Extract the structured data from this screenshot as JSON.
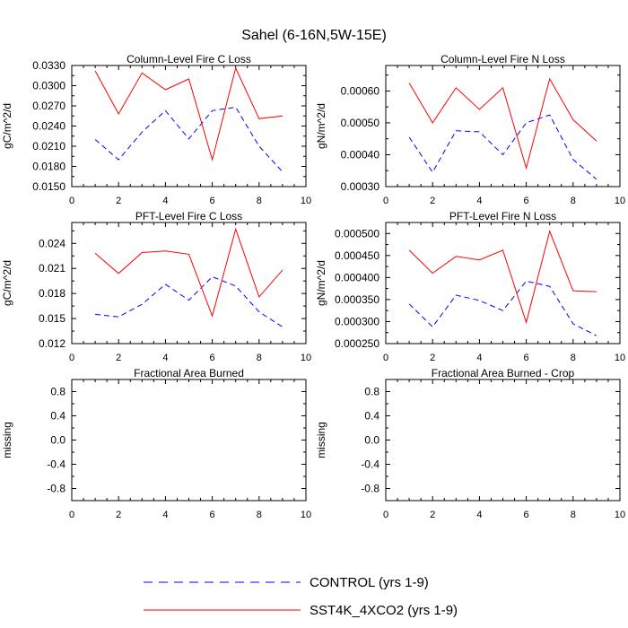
{
  "page": {
    "title": "Sahel (6-16N,5W-15E)"
  },
  "colors": {
    "control": "#0000ff",
    "sst4k": "#ff0000",
    "axis": "#000000"
  },
  "legend": {
    "control_label": "CONTROL (yrs 1-9)",
    "sst4k_label": "SST4K_4XCO2 (yrs 1-9)"
  },
  "chart_data": [
    {
      "type": "line",
      "title": "Column-Level Fire C Loss",
      "ylabel": "gC/m^2/d",
      "xlim": [
        0,
        10
      ],
      "ylim": [
        0.015,
        0.033
      ],
      "xticks": [
        "0",
        "2",
        "4",
        "6",
        "8",
        "10"
      ],
      "xtick_values": [
        0,
        2,
        4,
        6,
        8,
        10
      ],
      "yticks": [
        "0.0150",
        "0.0180",
        "0.0210",
        "0.0240",
        "0.0270",
        "0.0300",
        "0.0330"
      ],
      "ytick_values": [
        0.015,
        0.018,
        0.021,
        0.024,
        0.027,
        0.03,
        0.033
      ],
      "x": [
        1,
        2,
        3,
        4,
        5,
        6,
        7,
        8,
        9
      ],
      "series": [
        {
          "name": "CONTROL (yrs 1-9)",
          "style": "dashed",
          "values": [
            0.022,
            0.019,
            0.0231,
            0.0263,
            0.0221,
            0.0263,
            0.0268,
            0.021,
            0.0172
          ]
        },
        {
          "name": "SST4K_4XCO2 (yrs 1-9)",
          "style": "solid",
          "values": [
            0.0322,
            0.0258,
            0.0319,
            0.0294,
            0.031,
            0.019,
            0.0326,
            0.0251,
            0.0255
          ]
        }
      ]
    },
    {
      "type": "line",
      "title": "Column-Level Fire N Loss",
      "ylabel": "gN/m^2/d",
      "xlim": [
        0,
        10
      ],
      "ylim": [
        0.0003,
        0.00068
      ],
      "xticks": [
        "0",
        "2",
        "4",
        "6",
        "8",
        "10"
      ],
      "xtick_values": [
        0,
        2,
        4,
        6,
        8,
        10
      ],
      "yticks": [
        "0.00030",
        "0.00040",
        "0.00050",
        "0.00060"
      ],
      "ytick_values": [
        0.0003,
        0.0004,
        0.0005,
        0.0006
      ],
      "x": [
        1,
        2,
        3,
        4,
        5,
        6,
        7,
        8,
        9
      ],
      "series": [
        {
          "name": "CONTROL (yrs 1-9)",
          "style": "dashed",
          "values": [
            0.000455,
            0.000345,
            0.000475,
            0.000472,
            0.0004,
            0.0005,
            0.000525,
            0.000385,
            0.000323
          ]
        },
        {
          "name": "SST4K_4XCO2 (yrs 1-9)",
          "style": "solid",
          "values": [
            0.000625,
            0.0005,
            0.00061,
            0.000542,
            0.00061,
            0.000358,
            0.000638,
            0.00051,
            0.000443
          ]
        }
      ]
    },
    {
      "type": "line",
      "title": "PFT-Level Fire C Loss",
      "ylabel": "gC/m^2/d",
      "xlim": [
        0,
        10
      ],
      "ylim": [
        0.012,
        0.0265
      ],
      "xticks": [
        "0",
        "2",
        "4",
        "6",
        "8",
        "10"
      ],
      "xtick_values": [
        0,
        2,
        4,
        6,
        8,
        10
      ],
      "yticks": [
        "0.012",
        "0.015",
        "0.018",
        "0.021",
        "0.024"
      ],
      "ytick_values": [
        0.012,
        0.015,
        0.018,
        0.021,
        0.024
      ],
      "x": [
        1,
        2,
        3,
        4,
        5,
        6,
        7,
        8,
        9
      ],
      "series": [
        {
          "name": "CONTROL (yrs 1-9)",
          "style": "dashed",
          "values": [
            0.0155,
            0.0152,
            0.0167,
            0.0191,
            0.0172,
            0.02,
            0.0189,
            0.0158,
            0.014
          ]
        },
        {
          "name": "SST4K_4XCO2 (yrs 1-9)",
          "style": "solid",
          "values": [
            0.0228,
            0.0204,
            0.0229,
            0.0231,
            0.0227,
            0.0153,
            0.0257,
            0.0176,
            0.0208
          ]
        }
      ]
    },
    {
      "type": "line",
      "title": "PFT-Level Fire N Loss",
      "ylabel": "gN/m^2/d",
      "xlim": [
        0,
        10
      ],
      "ylim": [
        0.00025,
        0.000525
      ],
      "xticks": [
        "0",
        "2",
        "4",
        "6",
        "8",
        "10"
      ],
      "xtick_values": [
        0,
        2,
        4,
        6,
        8,
        10
      ],
      "yticks": [
        "0.000250",
        "0.000300",
        "0.000350",
        "0.000400",
        "0.000450",
        "0.000500"
      ],
      "ytick_values": [
        0.00025,
        0.0003,
        0.00035,
        0.0004,
        0.00045,
        0.0005
      ],
      "x": [
        1,
        2,
        3,
        4,
        5,
        6,
        7,
        8,
        9
      ],
      "series": [
        {
          "name": "CONTROL (yrs 1-9)",
          "style": "dashed",
          "values": [
            0.00034,
            0.000288,
            0.00036,
            0.000348,
            0.000325,
            0.000392,
            0.00038,
            0.000295,
            0.000268
          ]
        },
        {
          "name": "SST4K_4XCO2 (yrs 1-9)",
          "style": "solid",
          "values": [
            0.000462,
            0.00041,
            0.000448,
            0.00044,
            0.000462,
            0.000298,
            0.000505,
            0.00037,
            0.000368
          ]
        }
      ]
    },
    {
      "type": "line",
      "title": "Fractional Area Burned",
      "ylabel": "missing",
      "xlim": [
        0,
        10
      ],
      "ylim": [
        -1.0,
        1.0
      ],
      "xticks": [
        "0",
        "2",
        "4",
        "6",
        "8",
        "10"
      ],
      "xtick_values": [
        0,
        2,
        4,
        6,
        8,
        10
      ],
      "yticks": [
        "-0.8",
        "-0.4",
        "0.0",
        "0.4",
        "0.8"
      ],
      "ytick_values": [
        -0.8,
        -0.4,
        0.0,
        0.4,
        0.8
      ],
      "x": [],
      "series": []
    },
    {
      "type": "line",
      "title": "Fractional Area Burned - Crop",
      "ylabel": "missing",
      "xlim": [
        0,
        10
      ],
      "ylim": [
        -1.0,
        1.0
      ],
      "xticks": [
        "0",
        "2",
        "4",
        "6",
        "8",
        "10"
      ],
      "xtick_values": [
        0,
        2,
        4,
        6,
        8,
        10
      ],
      "yticks": [
        "-0.8",
        "-0.4",
        "0.0",
        "0.4",
        "0.8"
      ],
      "ytick_values": [
        -0.8,
        -0.4,
        0.0,
        0.4,
        0.8
      ],
      "x": [],
      "series": []
    }
  ]
}
